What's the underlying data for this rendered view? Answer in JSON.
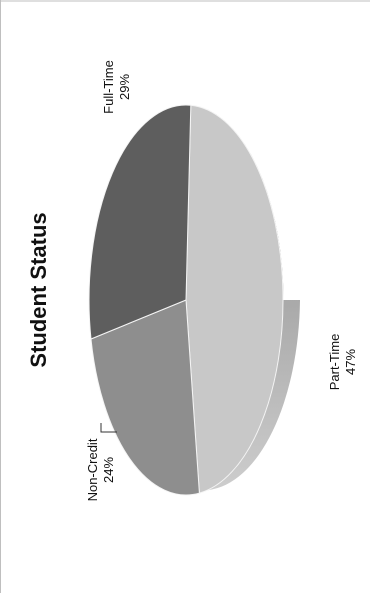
{
  "chart_data": {
    "type": "pie",
    "title": "Student Status",
    "style": "3d",
    "orientation": "rotated-90-ccw",
    "slices": [
      {
        "label": "Part-Time",
        "value": 47,
        "value_label": "47%",
        "color": "#c8c8c8"
      },
      {
        "label": "Non-Credit",
        "value": 24,
        "value_label": "24%",
        "color": "#8e8e8e"
      },
      {
        "label": "Full-Time",
        "value": 29,
        "value_label": "29%",
        "color": "#5e5e5e"
      }
    ]
  }
}
